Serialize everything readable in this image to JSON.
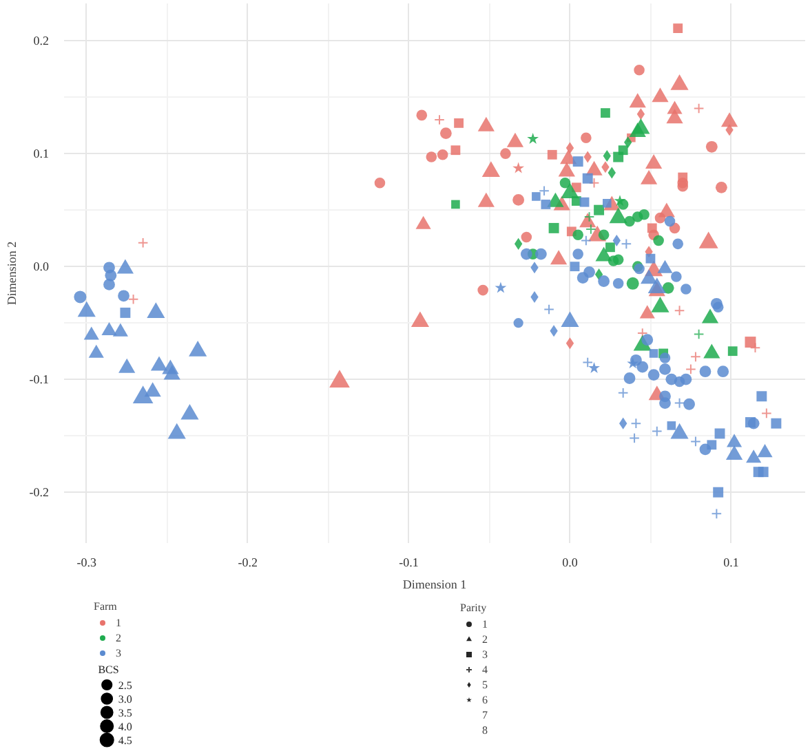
{
  "chart_data": {
    "type": "bubble",
    "xlabel": "Dimension 1",
    "ylabel": "Dimension 2",
    "legend_title": "Farm",
    "legend": "bottom",
    "grid": true,
    "xlim": [
      -0.314,
      0.146
    ],
    "ylim": [
      -0.245,
      0.233
    ],
    "xticks": [
      {
        "value": -0.3,
        "label": "-0.3"
      },
      {
        "value": -0.2,
        "label": "-0.2"
      },
      {
        "value": -0.1,
        "label": "-0.1"
      },
      {
        "value": 0.0,
        "label": "0.0"
      },
      {
        "value": 0.1,
        "label": "0.1"
      }
    ],
    "yticks": [
      {
        "value": -0.2,
        "label": "-0.2"
      },
      {
        "value": -0.1,
        "label": "-0.1"
      },
      {
        "value": 0.0,
        "label": "0.0"
      },
      {
        "value": 0.1,
        "label": "0.1"
      },
      {
        "value": 0.2,
        "label": "0.2"
      }
    ],
    "size_legend": [
      2.5,
      {
        "value": 3,
        "label": "3.0"
      },
      3.5,
      {
        "value": 4,
        "label": "4.0"
      },
      4.5
    ],
    "annotations": [
      "BCS",
      "Parity",
      "1",
      "2",
      "3",
      "4",
      "5",
      "6",
      "7",
      "8"
    ],
    "series": [
      {
        "name": "1",
        "color": "#e8736c",
        "marker": "circle",
        "x": [
          -0.118,
          0.043,
          -0.092,
          -0.077,
          -0.079,
          -0.086,
          -0.04,
          0.01,
          0.07,
          0.07,
          0.094,
          0.088,
          0.056,
          0.065,
          0.052,
          -0.027,
          -0.032,
          -0.054
        ],
        "values": [
          0.074,
          0.174,
          0.134,
          0.118,
          0.099,
          0.097,
          0.1,
          0.114,
          0.074,
          0.071,
          0.07,
          0.106,
          0.043,
          0.034,
          0.028,
          0.026,
          0.059,
          -0.021
        ],
        "sizes": [
          3.0,
          3.0,
          3.0,
          3.5,
          3.0,
          3.0,
          3.0,
          3.0,
          3.0,
          3.0,
          3.5,
          3.5,
          3.0,
          3.0,
          3.0,
          3.0,
          3.5,
          3.0
        ]
      },
      {
        "color": "#e8736c",
        "marker": "triangle",
        "x": [
          -0.143,
          0.068,
          0.056,
          0.042,
          0.065,
          0.065,
          0.099,
          -0.052,
          -0.034,
          -0.049,
          -0.001,
          0.015,
          -0.002,
          -0.052,
          -0.091,
          -0.005,
          0.052,
          0.049,
          0.026,
          0.06,
          0.086,
          0.017,
          0.011,
          -0.007,
          0.052,
          0.054,
          -0.093,
          0.048,
          0.054
        ],
        "values": [
          -0.102,
          0.161,
          0.15,
          0.145,
          0.139,
          0.131,
          0.128,
          0.124,
          0.11,
          0.084,
          0.095,
          0.085,
          0.084,
          0.057,
          0.037,
          0.054,
          0.091,
          0.077,
          0.054,
          0.048,
          0.021,
          0.027,
          0.039,
          0.006,
          -0.004,
          -0.022,
          -0.049,
          -0.042,
          -0.114
        ],
        "sizes": [
          4.5,
          3.5,
          3.0,
          3.0,
          2.5,
          3.0,
          3.0,
          3.0,
          3.0,
          3.5,
          3.0,
          3.0,
          3.0,
          3.0,
          2.5,
          3.0,
          3.0,
          3.0,
          3.0,
          3.0,
          4.0,
          3.5,
          3.0,
          3.0,
          3.5,
          3.0,
          3.5,
          2.5,
          3.0
        ]
      },
      {
        "color": "#e8736c",
        "marker": "square",
        "x": [
          0.067,
          -0.069,
          -0.071,
          -0.011,
          0.004,
          0.038,
          0.07,
          0.051,
          0.001,
          0.112
        ],
        "values": [
          0.211,
          0.127,
          0.103,
          0.099,
          0.07,
          0.114,
          0.079,
          0.034,
          0.031,
          -0.067
        ],
        "sizes": [
          3.0,
          3.0,
          3.0,
          3.0,
          3.0,
          2.5,
          3.0,
          3.0,
          3.0,
          4.0
        ]
      },
      {
        "type": "scatter",
        "color": "#e8736c",
        "marker": "cross",
        "x": [
          -0.265,
          -0.271,
          0.08,
          -0.081,
          0.015,
          0.068,
          0.045,
          0.115,
          0.078,
          0.075,
          0.122
        ],
        "values": [
          0.021,
          -0.029,
          0.14,
          0.13,
          0.074,
          -0.039,
          -0.059,
          -0.072,
          -0.08,
          -0.091,
          -0.13
        ]
      },
      {
        "type": "scatter",
        "color": "#e8736c",
        "marker": "diamond",
        "x": [
          0.044,
          0.099,
          0.0,
          0.011,
          0.022,
          0.049,
          0.0
        ],
        "values": [
          0.135,
          0.121,
          0.105,
          0.097,
          0.088,
          0.013,
          -0.068
        ]
      },
      {
        "type": "scatter",
        "color": "#e8736c",
        "marker": "star",
        "x": [
          -0.032
        ],
        "values": [
          0.087
        ]
      },
      {
        "name": "2",
        "color": "#1fab4f",
        "marker": "circle",
        "x": [
          -0.003,
          0.033,
          0.037,
          0.042,
          0.046,
          0.005,
          0.021,
          0.055,
          -0.023,
          0.027,
          0.03,
          0.042,
          0.039,
          0.061
        ],
        "values": [
          0.074,
          0.055,
          0.04,
          0.044,
          0.046,
          0.028,
          0.028,
          0.023,
          0.011,
          0.005,
          0.006,
          0.0,
          -0.015,
          -0.019
        ],
        "sizes": [
          3.0,
          3.0,
          3.0,
          3.0,
          3.0,
          3.0,
          3.0,
          3.0,
          3.0,
          3.0,
          3.0,
          3.0,
          4.0,
          3.5
        ]
      },
      {
        "color": "#1fab4f",
        "marker": "triangle",
        "x": [
          0.044,
          0.042,
          0.0,
          -0.009,
          0.03,
          0.021,
          0.056,
          0.087,
          0.045,
          0.088
        ],
        "values": [
          0.122,
          0.119,
          0.065,
          0.057,
          0.043,
          0.009,
          -0.036,
          -0.046,
          -0.07,
          -0.077
        ],
        "sizes": [
          3.5,
          3.0,
          3.5,
          3.0,
          3.5,
          3.0,
          3.5,
          3.0,
          3.5,
          3.0
        ]
      },
      {
        "color": "#1fab4f",
        "marker": "square",
        "x": [
          0.022,
          0.033,
          0.03,
          0.004,
          0.018,
          -0.071,
          -0.01,
          0.025,
          0.058,
          0.101
        ],
        "values": [
          0.136,
          0.103,
          0.097,
          0.058,
          0.05,
          0.055,
          0.034,
          0.017,
          -0.077,
          -0.075
        ],
        "sizes": [
          3.0,
          3.0,
          3.5,
          3.0,
          3.5,
          2.5,
          3.5,
          3.0,
          3.0,
          3.0
        ]
      },
      {
        "type": "scatter",
        "color": "#1fab4f",
        "marker": "cross",
        "x": [
          0.012,
          0.013,
          0.08
        ],
        "values": [
          0.044,
          0.033,
          -0.06
        ]
      },
      {
        "type": "scatter",
        "color": "#1fab4f",
        "marker": "diamond",
        "x": [
          0.036,
          0.023,
          0.026,
          -0.032,
          0.018
        ],
        "values": [
          0.11,
          0.098,
          0.083,
          0.02,
          -0.007
        ]
      },
      {
        "type": "scatter",
        "color": "#1fab4f",
        "marker": "star",
        "x": [
          -0.023,
          0.031
        ],
        "values": [
          0.113,
          0.058
        ]
      },
      {
        "name": "3",
        "color": "#5b8bd0",
        "marker": "circle",
        "x": [
          -0.286,
          -0.285,
          -0.286,
          -0.304,
          -0.277,
          0.062,
          0.067,
          -0.027,
          -0.018,
          0.005,
          0.008,
          0.012,
          0.021,
          0.03,
          0.043,
          0.066,
          0.072,
          0.091,
          0.092,
          -0.032,
          0.048,
          0.041,
          0.045,
          0.037,
          0.052,
          0.059,
          0.059,
          0.063,
          0.068,
          0.072,
          0.084,
          0.095,
          0.059,
          0.059,
          0.074,
          0.084,
          0.114
        ],
        "values": [
          -0.001,
          -0.008,
          -0.016,
          -0.027,
          -0.026,
          0.04,
          0.02,
          0.011,
          0.011,
          0.011,
          -0.01,
          -0.005,
          -0.013,
          -0.015,
          -0.002,
          -0.009,
          -0.02,
          -0.033,
          -0.036,
          -0.05,
          -0.065,
          -0.083,
          -0.089,
          -0.099,
          -0.096,
          -0.081,
          -0.091,
          -0.1,
          -0.102,
          -0.1,
          -0.093,
          -0.093,
          -0.115,
          -0.121,
          -0.122,
          -0.162,
          -0.139
        ],
        "sizes": [
          3.5,
          3.5,
          3.5,
          4.0,
          3.5,
          3.0,
          3.0,
          3.5,
          3.5,
          3.0,
          3.5,
          3.5,
          3.5,
          3.0,
          3.0,
          3.0,
          3.0,
          3.5,
          3.0,
          2.5,
          3.5,
          3.5,
          3.5,
          3.5,
          3.5,
          3.0,
          3.5,
          3.5,
          3.0,
          3.5,
          3.5,
          3.5,
          3.5,
          3.5,
          3.5,
          3.5,
          3.5
        ]
      },
      {
        "color": "#5b8bd0",
        "marker": "triangle",
        "x": [
          -0.276,
          -0.3,
          -0.257,
          -0.297,
          -0.286,
          -0.279,
          -0.294,
          -0.231,
          -0.275,
          -0.255,
          -0.248,
          -0.247,
          -0.265,
          -0.259,
          -0.236,
          -0.244,
          0.049,
          0.059,
          0.054,
          0.0,
          0.068,
          0.102,
          0.102,
          0.114,
          0.121
        ],
        "values": [
          -0.002,
          -0.04,
          -0.041,
          -0.061,
          -0.057,
          -0.058,
          -0.077,
          -0.075,
          -0.09,
          -0.088,
          -0.091,
          -0.096,
          -0.116,
          -0.111,
          -0.131,
          -0.148,
          -0.011,
          -0.002,
          -0.019,
          -0.049,
          -0.148,
          -0.156,
          -0.167,
          -0.17,
          -0.165
        ],
        "sizes": [
          3.0,
          3.5,
          3.5,
          2.5,
          2.5,
          2.5,
          2.5,
          3.5,
          3.0,
          3.0,
          3.0,
          3.0,
          4.5,
          3.0,
          3.5,
          3.5,
          3.0,
          2.5,
          3.5,
          3.5,
          3.5,
          2.5,
          3.0,
          2.5,
          2.5
        ]
      },
      {
        "color": "#5b8bd0",
        "marker": "square",
        "x": [
          -0.276,
          0.005,
          0.011,
          -0.021,
          -0.015,
          0.009,
          0.023,
          0.05,
          0.003,
          0.052,
          0.063,
          0.088,
          0.093,
          0.119,
          0.112,
          0.128,
          0.117,
          0.12,
          0.092
        ],
        "values": [
          -0.041,
          0.093,
          0.078,
          0.062,
          0.055,
          0.057,
          0.056,
          0.007,
          0.0,
          -0.077,
          -0.141,
          -0.158,
          -0.148,
          -0.115,
          -0.138,
          -0.139,
          -0.182,
          -0.182,
          -0.2
        ],
        "sizes": [
          3.5,
          3.5,
          3.5,
          2.5,
          3.0,
          3.0,
          2.5,
          3.0,
          3.0,
          2.5,
          2.5,
          3.0,
          3.5,
          3.5,
          3.5,
          3.5,
          3.5,
          3.5,
          3.5
        ]
      },
      {
        "type": "scatter",
        "color": "#5b8bd0",
        "marker": "cross",
        "x": [
          -0.016,
          0.035,
          0.01,
          -0.013,
          0.011,
          0.033,
          0.041,
          0.04,
          0.054,
          0.078,
          0.091,
          0.068
        ],
        "values": [
          0.067,
          0.02,
          0.023,
          -0.038,
          -0.085,
          -0.112,
          -0.139,
          -0.152,
          -0.146,
          -0.155,
          -0.219,
          -0.121
        ]
      },
      {
        "type": "scatter",
        "color": "#5b8bd0",
        "marker": "diamond",
        "x": [
          0.029,
          -0.022,
          -0.022,
          -0.01,
          0.033
        ],
        "values": [
          0.023,
          -0.001,
          -0.027,
          -0.057,
          -0.139
        ]
      },
      {
        "type": "scatter",
        "color": "#5b8bd0",
        "marker": "star",
        "x": [
          -0.043,
          0.015,
          0.039
        ],
        "values": [
          -0.019,
          -0.09,
          -0.086
        ]
      }
    ]
  }
}
